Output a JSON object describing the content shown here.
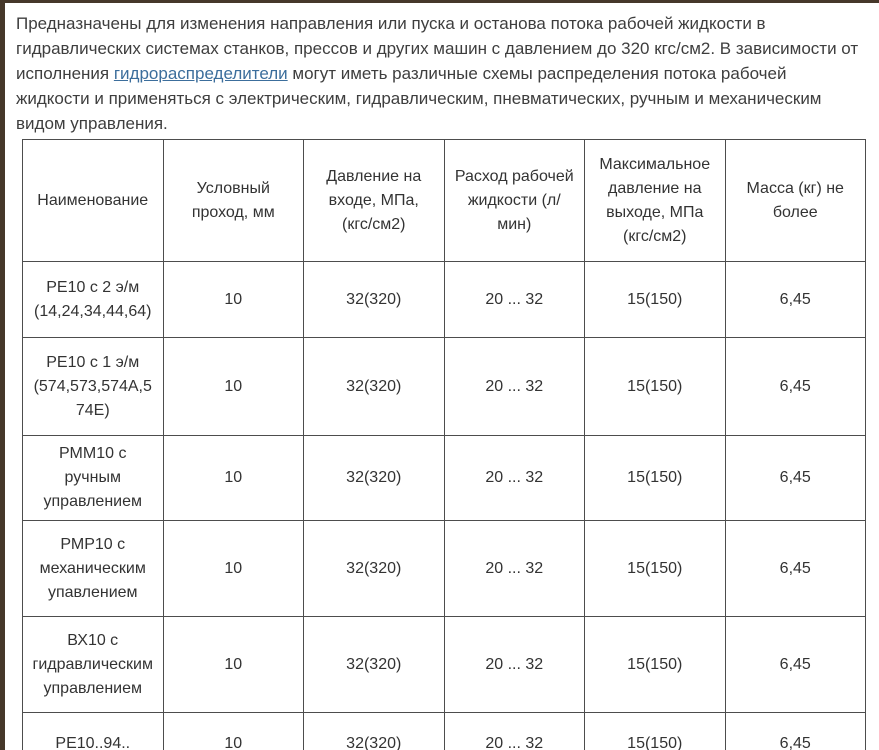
{
  "colors": {
    "accent_border": "#46382a",
    "table_border": "#4d4d4d",
    "link": "#3c6e9c",
    "text": "#3e3e3e"
  },
  "intro": {
    "text_before_link": "Предназначены для изменения направления или пуска и останова потока рабочей жидкости в гидравлических системах станков, прессов и других машин с давлением до 320 кгс/см2. В зависимости от исполнения ",
    "link_text": "гидрораспределители",
    "text_after_link": " могут иметь различные схемы распределения потока рабочей жидкости и применяться с электрическим, гидравлическим, пневматических, ручным и механическим видом управления."
  },
  "table": {
    "headers": [
      "Наименование",
      "Условный проход, мм",
      "Давление на входе, МПа, (кгс/см2)",
      "Расход рабочей жидкости (л/ мин)",
      "Максимальное давление на выходе, МПа (кгс/см2)",
      "Масса (кг) не более"
    ],
    "rows": [
      [
        "РЕ10 с 2 э/м (14,24,34,44,64)",
        "10",
        "32(320)",
        "20 ... 32",
        "15(150)",
        "6,45"
      ],
      [
        "РЕ10 с 1 э/м (574,573,574А,574Е)",
        "10",
        "32(320)",
        "20 ... 32",
        "15(150)",
        "6,45"
      ],
      [
        "РММ10 с ручным управлением",
        "10",
        "32(320)",
        "20 ... 32",
        "15(150)",
        "6,45"
      ],
      [
        "РМР10 с механическим упавлением",
        "10",
        "32(320)",
        "20 ... 32",
        "15(150)",
        "6,45"
      ],
      [
        "ВХ10 с гидравлическим управлением",
        "10",
        "32(320)",
        "20 ... 32",
        "15(150)",
        "6,45"
      ],
      [
        "РЕ10..94..",
        "10",
        "32(320)",
        "20 ... 32",
        "15(150)",
        "6,45"
      ]
    ]
  }
}
